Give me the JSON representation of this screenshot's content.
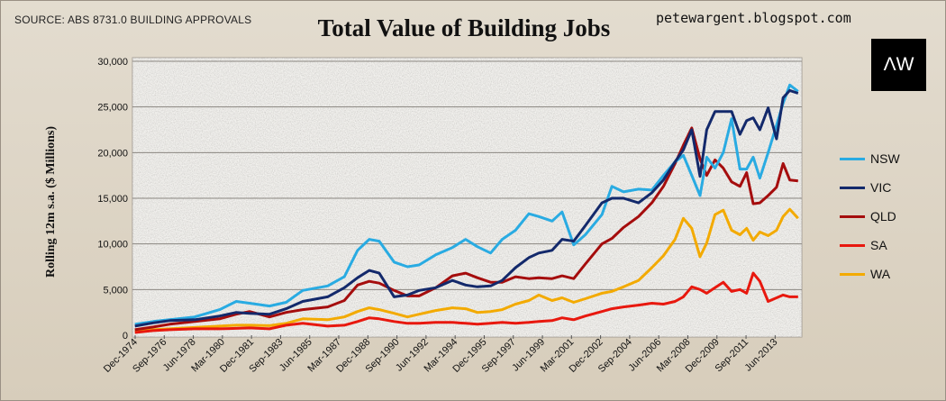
{
  "header": {
    "source": "SOURCE: ABS 8731.0 BUILDING APPROVALS",
    "blog": "petewargent.blogspot.com",
    "logo_text": "ΛW"
  },
  "chart_data": {
    "type": "line",
    "title": "Total Value of Building Jobs",
    "xlabel": "",
    "ylabel": "Rolling 12m s.a. ($ Millions)",
    "ylim": [
      0,
      30000
    ],
    "yticks": [
      0,
      5000,
      10000,
      15000,
      20000,
      25000,
      30000
    ],
    "ytick_labels": [
      "0",
      "5,000",
      "10,000",
      "15,000",
      "20,000",
      "25,000",
      "30,000"
    ],
    "xlim": [
      "1974-12",
      "2014-12"
    ],
    "xtick_labels": [
      "Dec-1974",
      "Sep-1976",
      "Jun-1978",
      "Mar-1980",
      "Dec-1981",
      "Sep-1983",
      "Jun-1985",
      "Mar-1987",
      "Dec-1988",
      "Sep-1990",
      "Jun-1992",
      "Mar-1994",
      "Dec-1995",
      "Sep-1997",
      "Jun-1999",
      "Mar-2001",
      "Dec-2002",
      "Sep-2004",
      "Jun-2006",
      "Mar-2008",
      "Dec-2009",
      "Sep-2011",
      "Jun-2013"
    ],
    "grid": true,
    "legend": "right",
    "x": [
      1974.9,
      1976.0,
      1977.0,
      1978.5,
      1980.0,
      1981.0,
      1981.8,
      1983.0,
      1984.0,
      1985.0,
      1986.5,
      1987.5,
      1988.3,
      1989.0,
      1989.6,
      1990.5,
      1991.3,
      1992.0,
      1993.0,
      1994.0,
      1994.8,
      1995.5,
      1996.3,
      1997.0,
      1997.8,
      1998.6,
      1999.2,
      2000.0,
      2000.6,
      2001.3,
      2002.0,
      2003.0,
      2003.6,
      2004.3,
      2005.2,
      2006.0,
      2006.7,
      2007.4,
      2007.9,
      2008.4,
      2008.9,
      2009.3,
      2009.8,
      2010.3,
      2010.8,
      2011.3,
      2011.7,
      2012.1,
      2012.5,
      2013.0,
      2013.5,
      2013.9,
      2014.3,
      2014.8
    ],
    "series": [
      {
        "name": "NSW",
        "color": "#29abe2",
        "values": [
          1200,
          1500,
          1700,
          2000,
          2800,
          3700,
          3500,
          3200,
          3600,
          4900,
          5400,
          6400,
          9300,
          10500,
          10300,
          8000,
          7500,
          7700,
          8800,
          9600,
          10500,
          9700,
          9000,
          10500,
          11500,
          13300,
          13000,
          12500,
          13500,
          9900,
          11000,
          13200,
          16300,
          15700,
          16000,
          15900,
          17500,
          19000,
          19700,
          17500,
          15300,
          19500,
          18300,
          20000,
          23700,
          18200,
          18200,
          19500,
          17200,
          20000,
          23000,
          25400,
          27400,
          26700
        ]
      },
      {
        "name": "VIC",
        "color": "#13296b",
        "values": [
          1000,
          1350,
          1600,
          1700,
          2100,
          2500,
          2400,
          2300,
          2900,
          3700,
          4200,
          5200,
          6300,
          7100,
          6800,
          4200,
          4400,
          4900,
          5200,
          6000,
          5500,
          5300,
          5400,
          6000,
          7400,
          8500,
          9000,
          9300,
          10500,
          10300,
          12000,
          14500,
          15000,
          15000,
          14500,
          15600,
          17000,
          19000,
          20300,
          22500,
          17400,
          22500,
          24500,
          24500,
          24500,
          22000,
          23500,
          23800,
          22500,
          24900,
          21500,
          26000,
          26800,
          26500
        ]
      },
      {
        "name": "QLD",
        "color": "#a50d0d",
        "values": [
          600,
          900,
          1200,
          1500,
          1800,
          2300,
          2600,
          2000,
          2500,
          2800,
          3100,
          3800,
          5500,
          5900,
          5700,
          4900,
          4300,
          4300,
          5200,
          6500,
          6800,
          6300,
          5800,
          5800,
          6400,
          6200,
          6300,
          6200,
          6500,
          6200,
          7800,
          10000,
          10600,
          11800,
          13000,
          14500,
          16300,
          18800,
          20800,
          22700,
          19300,
          17500,
          19200,
          18300,
          16800,
          16300,
          17800,
          14400,
          14500,
          15300,
          16200,
          18800,
          17000,
          16900
        ]
      },
      {
        "name": "SA",
        "color": "#e8180e",
        "values": [
          300,
          500,
          600,
          700,
          700,
          750,
          800,
          700,
          1100,
          1300,
          1000,
          1100,
          1500,
          1900,
          1800,
          1500,
          1300,
          1300,
          1400,
          1400,
          1300,
          1200,
          1300,
          1400,
          1300,
          1400,
          1500,
          1600,
          1900,
          1700,
          2100,
          2600,
          2900,
          3100,
          3300,
          3500,
          3400,
          3700,
          4200,
          5300,
          5000,
          4600,
          5200,
          5800,
          4800,
          5000,
          4600,
          6800,
          5900,
          3700,
          4100,
          4400,
          4200,
          4200
        ]
      },
      {
        "name": "WA",
        "color": "#f3aa00",
        "values": [
          500,
          600,
          700,
          850,
          1000,
          1100,
          1100,
          1050,
          1300,
          1800,
          1700,
          2000,
          2600,
          3000,
          2800,
          2400,
          2000,
          2300,
          2700,
          3000,
          2900,
          2500,
          2600,
          2800,
          3400,
          3800,
          4400,
          3800,
          4100,
          3600,
          4000,
          4600,
          4800,
          5300,
          6000,
          7400,
          8700,
          10500,
          12800,
          11700,
          8600,
          10100,
          13200,
          13700,
          11500,
          11000,
          11700,
          10400,
          11300,
          10900,
          11500,
          13000,
          13800,
          12800
        ]
      }
    ]
  }
}
